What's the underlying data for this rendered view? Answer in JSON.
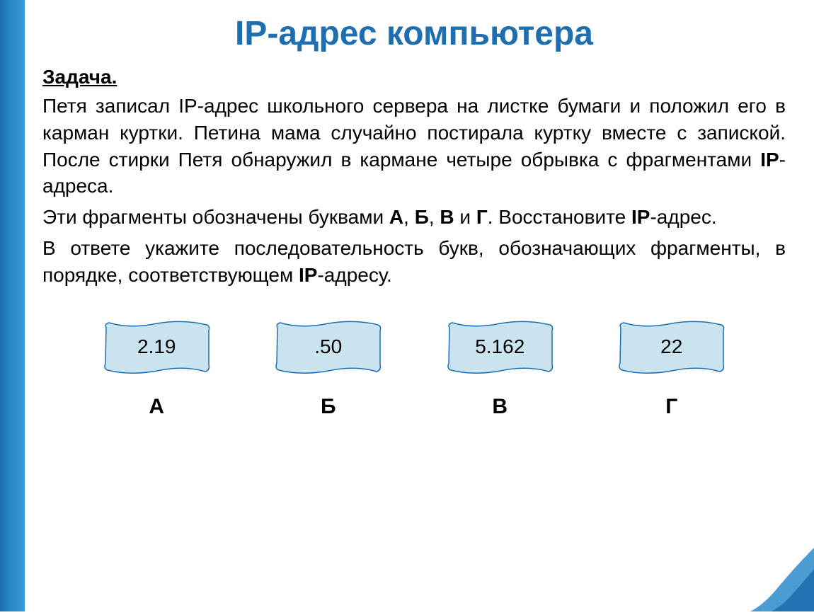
{
  "title": "IP-адрес компьютера",
  "task_heading": "Задача.",
  "paragraph1_html": "Петя записал IP-адрес школьного сервера на листке бумаги и положил его в карман куртки. Петина мама случайно постирала куртку вместе с запиской. После стирки Петя обнаружил в кармане четыре обрывка с фрагментами <b>IP</b>-адреса.",
  "paragraph2_html": "Эти фрагменты обозначены буквами <b>А</b>, <b>Б</b>, <b>В</b> и <b>Г</b>. Восстановите <b>IP</b>-адрес.",
  "paragraph3_html": "В ответе укажите последовательность букв, обозначающих фрагменты, в порядке, соответствующем <b>IP</b>-адресу.",
  "fragments": [
    {
      "text": "2.19",
      "label": "А"
    },
    {
      "text": ".50",
      "label": "Б"
    },
    {
      "text": "5.162",
      "label": "В"
    },
    {
      "text": "22",
      "label": "Г"
    }
  ],
  "style": {
    "title_color": "#1f6fb0",
    "title_fontsize": 48,
    "body_fontsize": 28,
    "body_color": "#000000",
    "frag_fill": "#c9e4ef",
    "frag_stroke": "#1f6fb0",
    "stripe_gradient": [
      "#1a6fb0",
      "#2b8bc9",
      "#3a9cd8"
    ],
    "accent_color": "#2b8bc9",
    "background": "#ffffff",
    "frag_label_fontsize": 30,
    "frag_label_weight": "bold"
  }
}
